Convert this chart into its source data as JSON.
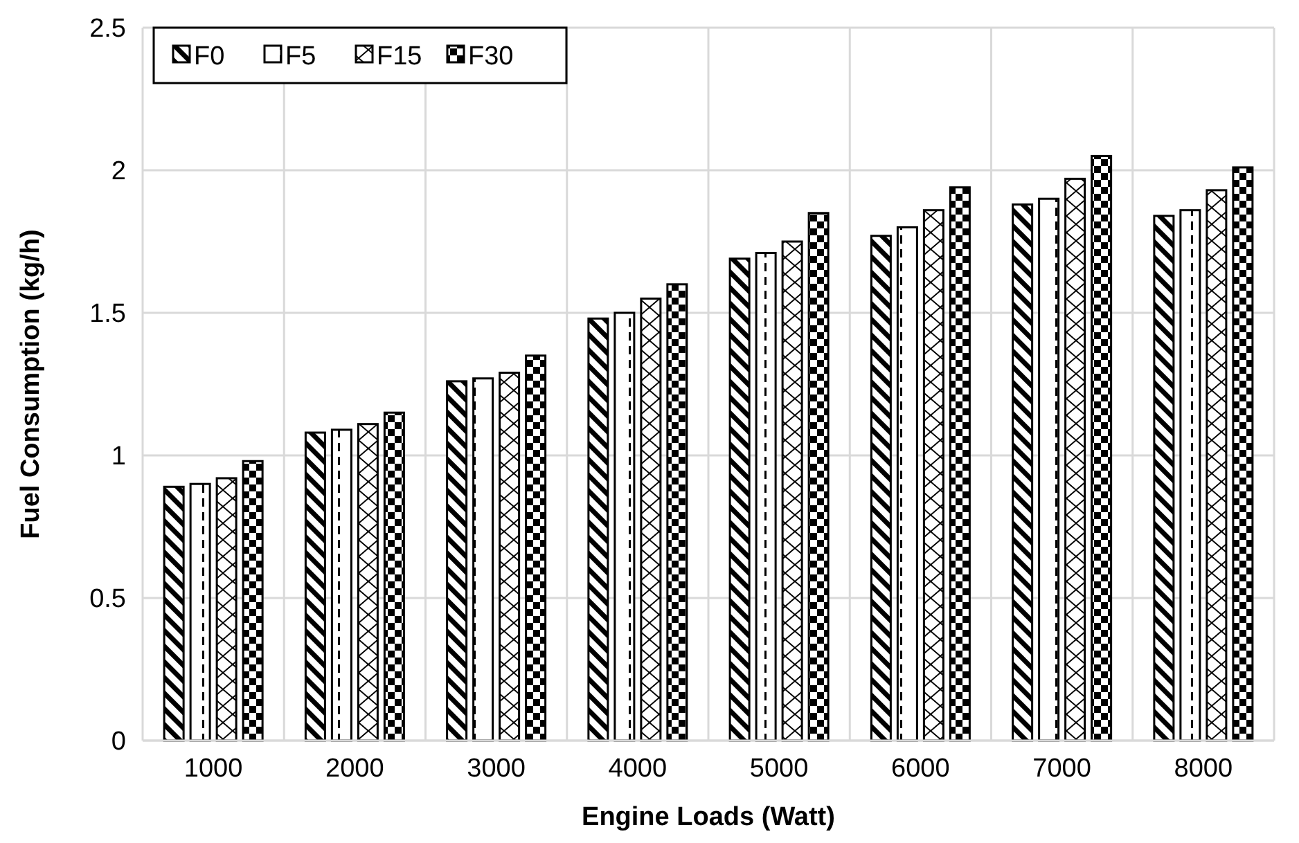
{
  "chart_data": {
    "type": "bar",
    "xlabel": "Engine Loads (Watt)",
    "ylabel": "Fuel Consumption (kg/h)",
    "categories": [
      "1000",
      "2000",
      "3000",
      "4000",
      "5000",
      "6000",
      "7000",
      "8000"
    ],
    "series": [
      {
        "name": "F0",
        "color": "#000000",
        "values": [
          0.89,
          1.08,
          1.26,
          1.48,
          1.69,
          1.77,
          1.88,
          1.84
        ]
      },
      {
        "name": "F5",
        "color": "#000000",
        "values": [
          0.9,
          1.09,
          1.27,
          1.5,
          1.71,
          1.8,
          1.9,
          1.86
        ]
      },
      {
        "name": "F15",
        "color": "#000000",
        "values": [
          0.92,
          1.11,
          1.29,
          1.55,
          1.75,
          1.86,
          1.97,
          1.93
        ]
      },
      {
        "name": "F30",
        "color": "#000000",
        "values": [
          0.98,
          1.15,
          1.35,
          1.6,
          1.85,
          1.94,
          2.05,
          2.01
        ]
      }
    ],
    "ylim": [
      0,
      2.5
    ],
    "yticks": [
      0,
      0.5,
      1,
      1.5,
      2,
      2.5
    ],
    "grid": true,
    "legend": "top left"
  }
}
